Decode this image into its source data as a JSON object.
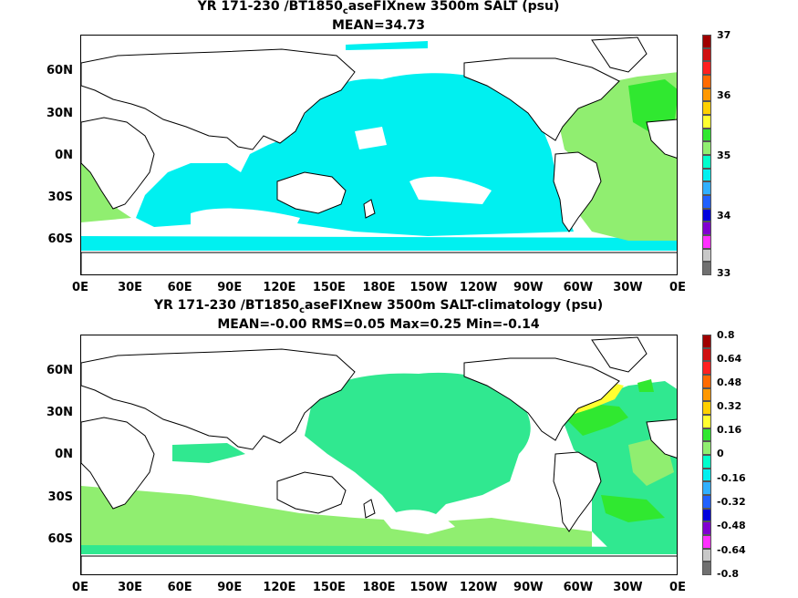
{
  "panels": [
    {
      "title_main": "YR 171-230 /BT1850",
      "title_sub": "c",
      "title_rest": "aseFIXnew 3500m SALT (psu)",
      "stats": "MEAN=34.73",
      "lat_labels": [
        "60N",
        "30N",
        "0N",
        "30S",
        "60S"
      ],
      "lon_labels": [
        "0E",
        "30E",
        "60E",
        "90E",
        "120E",
        "150E",
        "180E",
        "150W",
        "120W",
        "90W",
        "60W",
        "30W",
        "0E"
      ],
      "colorbar_labels": [
        "37",
        "36",
        "35",
        "34",
        "33"
      ],
      "colorbar_colors": [
        "#a00000",
        "#d01010",
        "#ff2020",
        "#ff6a00",
        "#ff9800",
        "#ffd000",
        "#ffff30",
        "#30e830",
        "#90ee70",
        "#00ffcc",
        "#00f0f0",
        "#30b0ff",
        "#2060ff",
        "#0000dd",
        "#8000d0",
        "#ff30ff",
        "#c8c8c8",
        "#707070"
      ]
    },
    {
      "title_main": "YR 171-230 /BT1850",
      "title_sub": "c",
      "title_rest": "aseFIXnew 3500m SALT-climatology (psu)",
      "stats": "MEAN=-0.00   RMS=0.05   Max=0.25   Min=-0.14",
      "lat_labels": [
        "60N",
        "30N",
        "0N",
        "30S",
        "60S"
      ],
      "lon_labels": [
        "0E",
        "30E",
        "60E",
        "90E",
        "120E",
        "150E",
        "180E",
        "150W",
        "120W",
        "90W",
        "60W",
        "30W",
        "0E"
      ],
      "colorbar_labels": [
        "0.8",
        "0.64",
        "0.48",
        "0.32",
        "0.16",
        "0",
        "-0.16",
        "-0.32",
        "-0.48",
        "-0.64",
        "-0.8"
      ],
      "colorbar_colors": [
        "#a00000",
        "#d01010",
        "#ff2020",
        "#ff6a00",
        "#ff9800",
        "#ffd000",
        "#ffff30",
        "#30e830",
        "#90ee70",
        "#00ffcc",
        "#00f0f0",
        "#30b0ff",
        "#2060ff",
        "#0000dd",
        "#8000d0",
        "#ff30ff",
        "#c8c8c8",
        "#707070"
      ]
    }
  ],
  "colors": {
    "salt_ocean_main": "#00f0f0",
    "salt_atlantic": "#90ee70",
    "salt_atlantic_high": "#30e830",
    "diff_pacific": "#30e890",
    "diff_southern": "#90ee70",
    "diff_atlantic_pos": "#30e830",
    "diff_labrador": "#ffff30",
    "land": "#ffffff",
    "coast": "#000000"
  }
}
